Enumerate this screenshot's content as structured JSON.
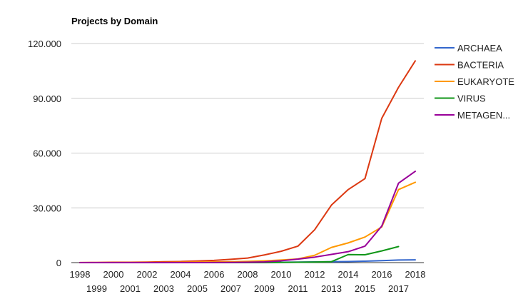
{
  "chart_data": {
    "type": "line",
    "title": "Projects by Domain",
    "xlabel": "",
    "ylabel": "",
    "x": [
      1998,
      1999,
      2000,
      2001,
      2002,
      2003,
      2004,
      2005,
      2006,
      2007,
      2008,
      2009,
      2010,
      2011,
      2012,
      2013,
      2014,
      2015,
      2016,
      2017,
      2018
    ],
    "x_tick_labels": [
      "1998",
      "1999",
      "2000",
      "2001",
      "2002",
      "2003",
      "2004",
      "2005",
      "2006",
      "2007",
      "2008",
      "2009",
      "2010",
      "2011",
      "2012",
      "2013",
      "2014",
      "2015",
      "2016",
      "2017",
      "2018"
    ],
    "ylim": [
      0,
      120000
    ],
    "y_ticks": [
      {
        "value": 0,
        "label": "0"
      },
      {
        "value": 30000,
        "label": "30.000"
      },
      {
        "value": 60000,
        "label": "60.000"
      },
      {
        "value": 90000,
        "label": "90.000"
      },
      {
        "value": 120000,
        "label": "120.000"
      }
    ],
    "grid": true,
    "legend_position": "right",
    "series": [
      {
        "name": "ARCHAEA",
        "color": "#3366cc",
        "values": [
          0,
          0,
          0,
          0,
          0,
          0,
          0,
          0,
          50,
          50,
          100,
          100,
          200,
          300,
          400,
          500,
          600,
          800,
          1100,
          1400,
          1500
        ]
      },
      {
        "name": "BACTERIA",
        "color": "#dc3912",
        "values": [
          50,
          100,
          200,
          200,
          300,
          500,
          600,
          900,
          1200,
          1800,
          2500,
          4200,
          6200,
          9000,
          18000,
          31500,
          40000,
          46000,
          79000,
          96000,
          110500
        ]
      },
      {
        "name": "EUKARYOTE",
        "color": "#ff9900",
        "values": [
          0,
          0,
          50,
          50,
          100,
          100,
          200,
          300,
          400,
          500,
          700,
          1000,
          1400,
          2000,
          4000,
          8300,
          10800,
          14000,
          19500,
          40000,
          44000
        ]
      },
      {
        "name": "VIRUS",
        "color": "#109618",
        "values": [
          0,
          0,
          0,
          0,
          0,
          0,
          0,
          0,
          0,
          0,
          0,
          0,
          100,
          200,
          300,
          500,
          4400,
          4300,
          6400,
          8800,
          null
        ]
      },
      {
        "name": "METAGEN...",
        "color": "#990099",
        "values": [
          0,
          0,
          0,
          0,
          0,
          0,
          0,
          0,
          50,
          100,
          200,
          400,
          1000,
          1900,
          3000,
          4500,
          6000,
          9000,
          20000,
          43500,
          50000
        ]
      }
    ]
  }
}
